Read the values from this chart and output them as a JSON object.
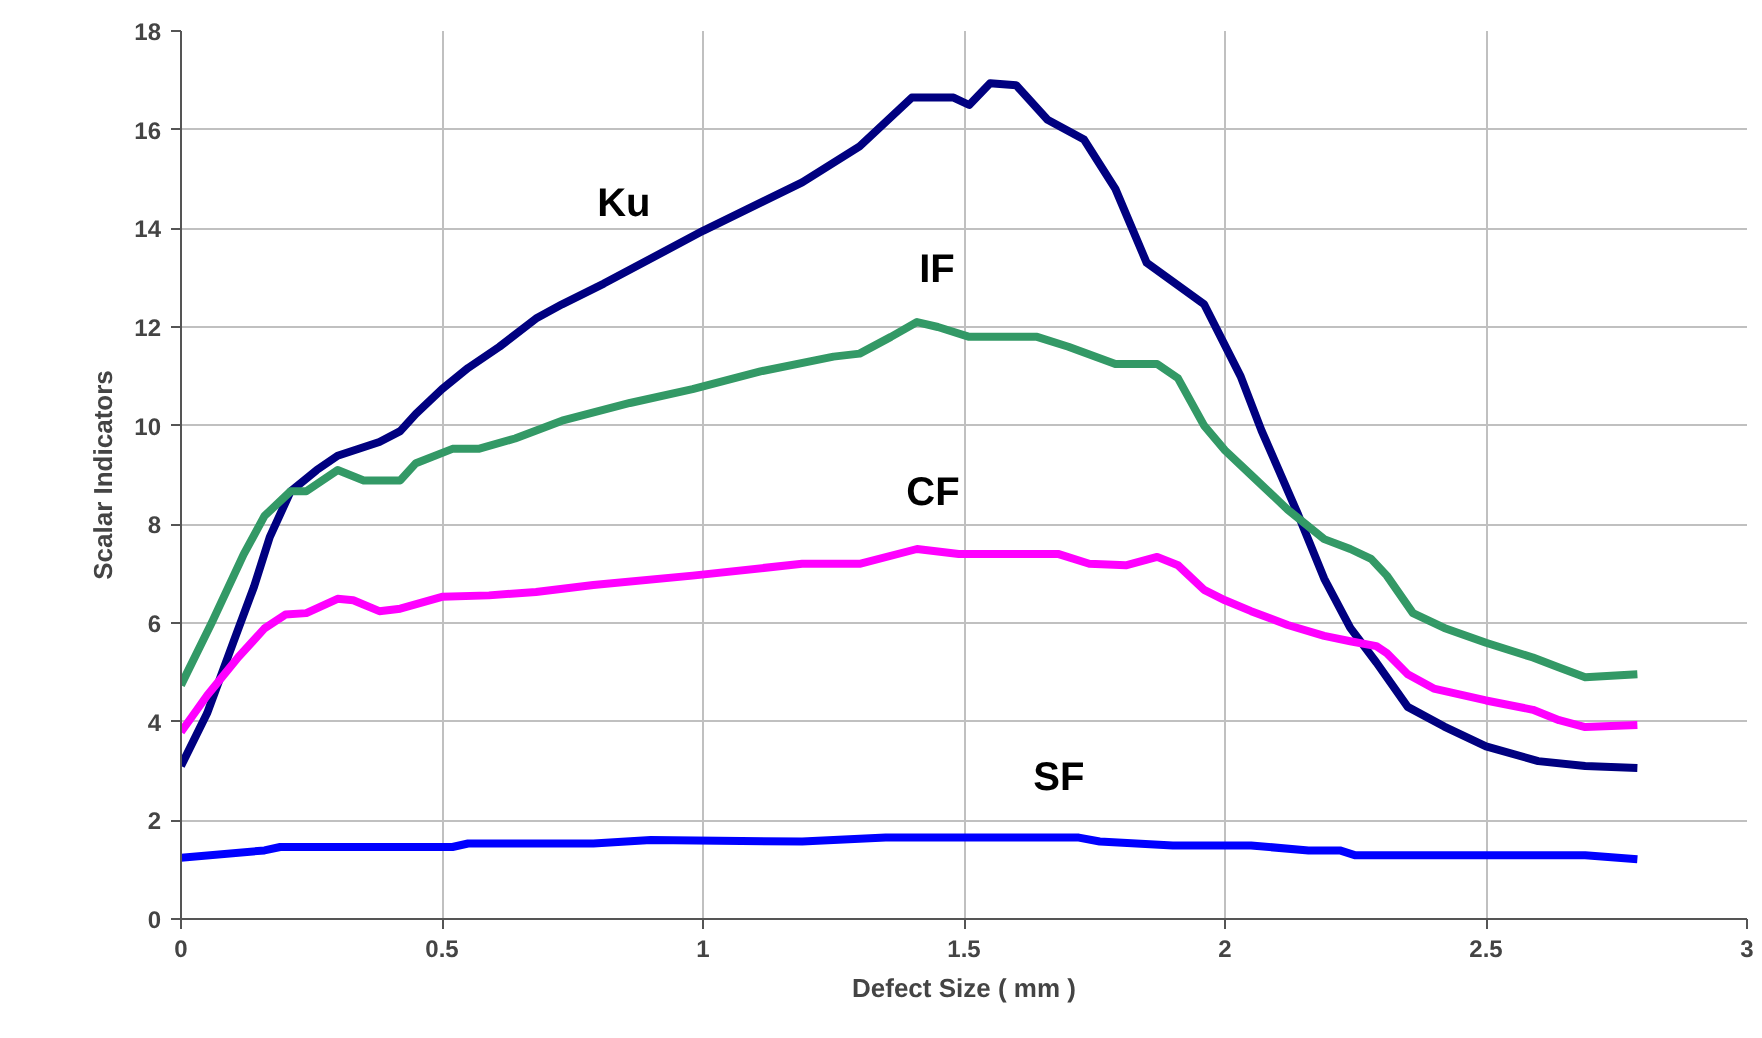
{
  "chart_data": {
    "type": "line",
    "xlabel": "Defect Size ( mm )",
    "ylabel": "Scalar Indicators",
    "xlim": [
      0,
      3
    ],
    "ylim": [
      0,
      18
    ],
    "xticks": [
      0,
      0.5,
      1,
      1.5,
      2,
      2.5,
      3
    ],
    "yticks": [
      0,
      2,
      4,
      6,
      8,
      10,
      12,
      14,
      16,
      18
    ],
    "grid": true,
    "legend": false,
    "line_style": "solid",
    "series": [
      {
        "name": "Ku",
        "color": "#000080",
        "x": [
          0,
          0.05,
          0.1,
          0.14,
          0.17,
          0.21,
          0.26,
          0.3,
          0.38,
          0.42,
          0.45,
          0.5,
          0.55,
          0.61,
          0.68,
          0.73,
          0.81,
          1.0,
          1.19,
          1.3,
          1.4,
          1.48,
          1.51,
          1.55,
          1.6,
          1.66,
          1.73,
          1.79,
          1.85,
          1.96,
          2.03,
          2.07,
          2.14,
          2.19,
          2.24,
          2.29,
          2.35,
          2.42,
          2.5,
          2.6,
          2.69,
          2.79
        ],
        "values": [
          3.1,
          4.17,
          5.6,
          6.74,
          7.74,
          8.67,
          9.1,
          9.39,
          9.67,
          9.89,
          10.24,
          10.74,
          11.17,
          11.6,
          12.17,
          12.46,
          12.88,
          13.95,
          14.93,
          15.66,
          16.65,
          16.65,
          16.5,
          16.94,
          16.9,
          16.2,
          15.8,
          14.8,
          13.3,
          12.46,
          11.0,
          9.9,
          8.2,
          6.9,
          5.9,
          5.2,
          4.3,
          3.9,
          3.5,
          3.2,
          3.1,
          3.06
        ]
      },
      {
        "name": "IF",
        "color": "#339966",
        "x": [
          0,
          0.06,
          0.12,
          0.16,
          0.21,
          0.24,
          0.3,
          0.35,
          0.42,
          0.45,
          0.52,
          0.57,
          0.64,
          0.73,
          0.86,
          0.98,
          1.11,
          1.25,
          1.3,
          1.36,
          1.41,
          1.45,
          1.51,
          1.64,
          1.7,
          1.79,
          1.87,
          1.91,
          1.96,
          2.0,
          2.05,
          2.12,
          2.19,
          2.24,
          2.28,
          2.31,
          2.36,
          2.42,
          2.5,
          2.59,
          2.64,
          2.69,
          2.79
        ],
        "values": [
          4.74,
          6.03,
          7.39,
          8.17,
          8.67,
          8.67,
          9.1,
          8.89,
          8.89,
          9.24,
          9.53,
          9.53,
          9.74,
          10.1,
          10.46,
          10.74,
          11.1,
          11.4,
          11.46,
          11.8,
          12.1,
          12.0,
          11.8,
          11.8,
          11.6,
          11.25,
          11.25,
          10.96,
          10.0,
          9.5,
          9.0,
          8.3,
          7.7,
          7.5,
          7.3,
          6.96,
          6.2,
          5.9,
          5.6,
          5.3,
          5.1,
          4.9,
          4.96
        ]
      },
      {
        "name": "CF",
        "color": "#ff00ff",
        "x": [
          0,
          0.05,
          0.11,
          0.16,
          0.2,
          0.24,
          0.3,
          0.33,
          0.38,
          0.42,
          0.5,
          0.59,
          0.68,
          0.79,
          0.98,
          1.19,
          1.3,
          1.41,
          1.49,
          1.68,
          1.74,
          1.81,
          1.87,
          1.91,
          1.96,
          2.0,
          2.05,
          2.12,
          2.19,
          2.24,
          2.29,
          2.31,
          2.35,
          2.4,
          2.5,
          2.59,
          2.64,
          2.69,
          2.79
        ],
        "values": [
          3.79,
          4.53,
          5.31,
          5.89,
          6.17,
          6.2,
          6.49,
          6.46,
          6.24,
          6.29,
          6.53,
          6.56,
          6.63,
          6.77,
          6.96,
          7.2,
          7.2,
          7.5,
          7.4,
          7.4,
          7.2,
          7.17,
          7.34,
          7.17,
          6.67,
          6.46,
          6.24,
          5.96,
          5.74,
          5.63,
          5.53,
          5.39,
          4.96,
          4.67,
          4.43,
          4.24,
          4.03,
          3.89,
          3.93
        ]
      },
      {
        "name": "SF",
        "color": "#0000ff",
        "x": [
          0,
          0.16,
          0.19,
          0.52,
          0.55,
          0.79,
          0.9,
          1.19,
          1.35,
          1.72,
          1.76,
          1.9,
          2.05,
          2.16,
          2.22,
          2.25,
          2.69,
          2.79
        ],
        "values": [
          1.24,
          1.39,
          1.46,
          1.46,
          1.53,
          1.53,
          1.6,
          1.57,
          1.65,
          1.65,
          1.57,
          1.49,
          1.49,
          1.39,
          1.39,
          1.29,
          1.29,
          1.21
        ]
      }
    ]
  }
}
